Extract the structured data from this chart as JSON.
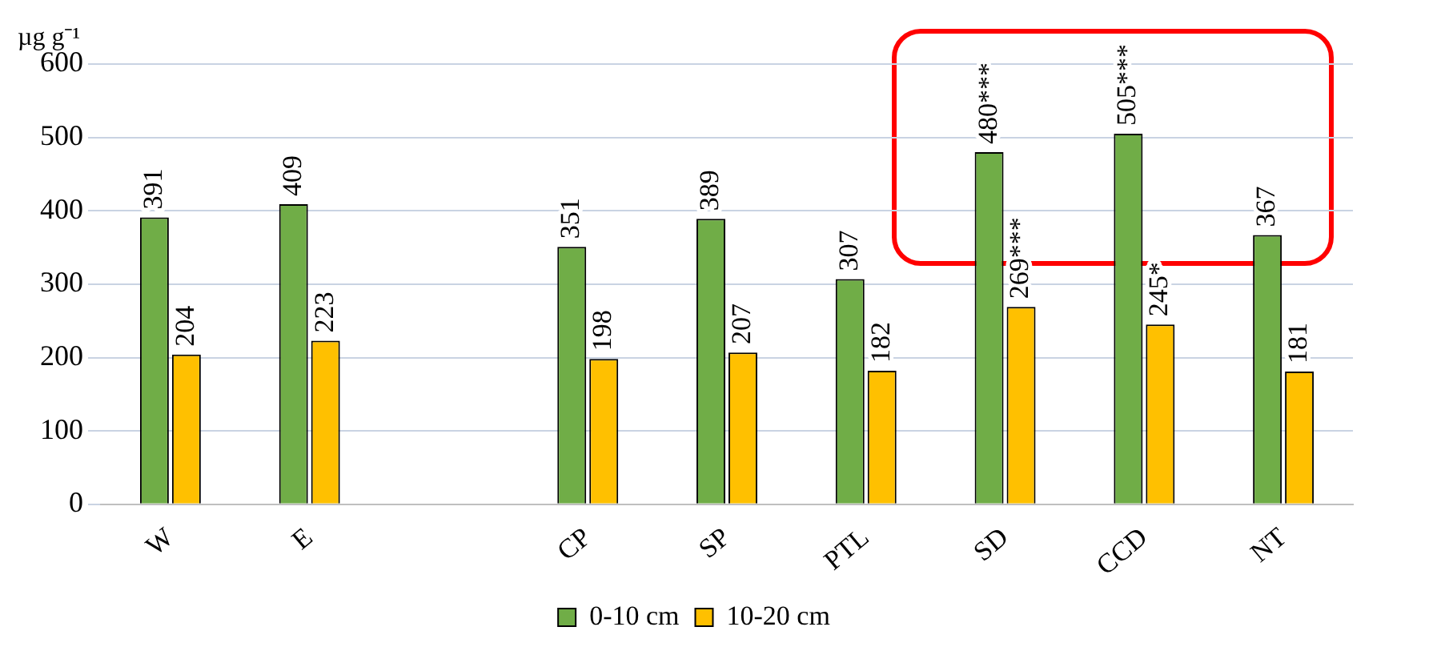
{
  "chart_data": {
    "type": "bar",
    "ylabel": "µg g⁻¹",
    "categories": [
      "W",
      "E",
      null,
      "CP",
      "SP",
      "PTL",
      "SD",
      "CCD",
      "NT"
    ],
    "series": [
      {
        "name": "0-10 cm",
        "color": "#70ad47",
        "values": [
          391,
          409,
          null,
          351,
          389,
          307,
          480,
          505,
          367
        ],
        "value_labels": [
          "391",
          "409",
          null,
          "351",
          "389",
          "307",
          "480***",
          "505***",
          "367"
        ]
      },
      {
        "name": "10-20 cm",
        "color": "#ffc000",
        "values": [
          204,
          223,
          null,
          198,
          207,
          182,
          269,
          245,
          181
        ],
        "value_labels": [
          "204",
          "223",
          null,
          "198",
          "207",
          "182",
          "269***",
          "245*",
          "181"
        ]
      }
    ],
    "ylim": [
      0,
      600
    ],
    "yticks": [
      0,
      100,
      200,
      300,
      400,
      500,
      600
    ],
    "grid": "y",
    "legend": "bottom"
  }
}
